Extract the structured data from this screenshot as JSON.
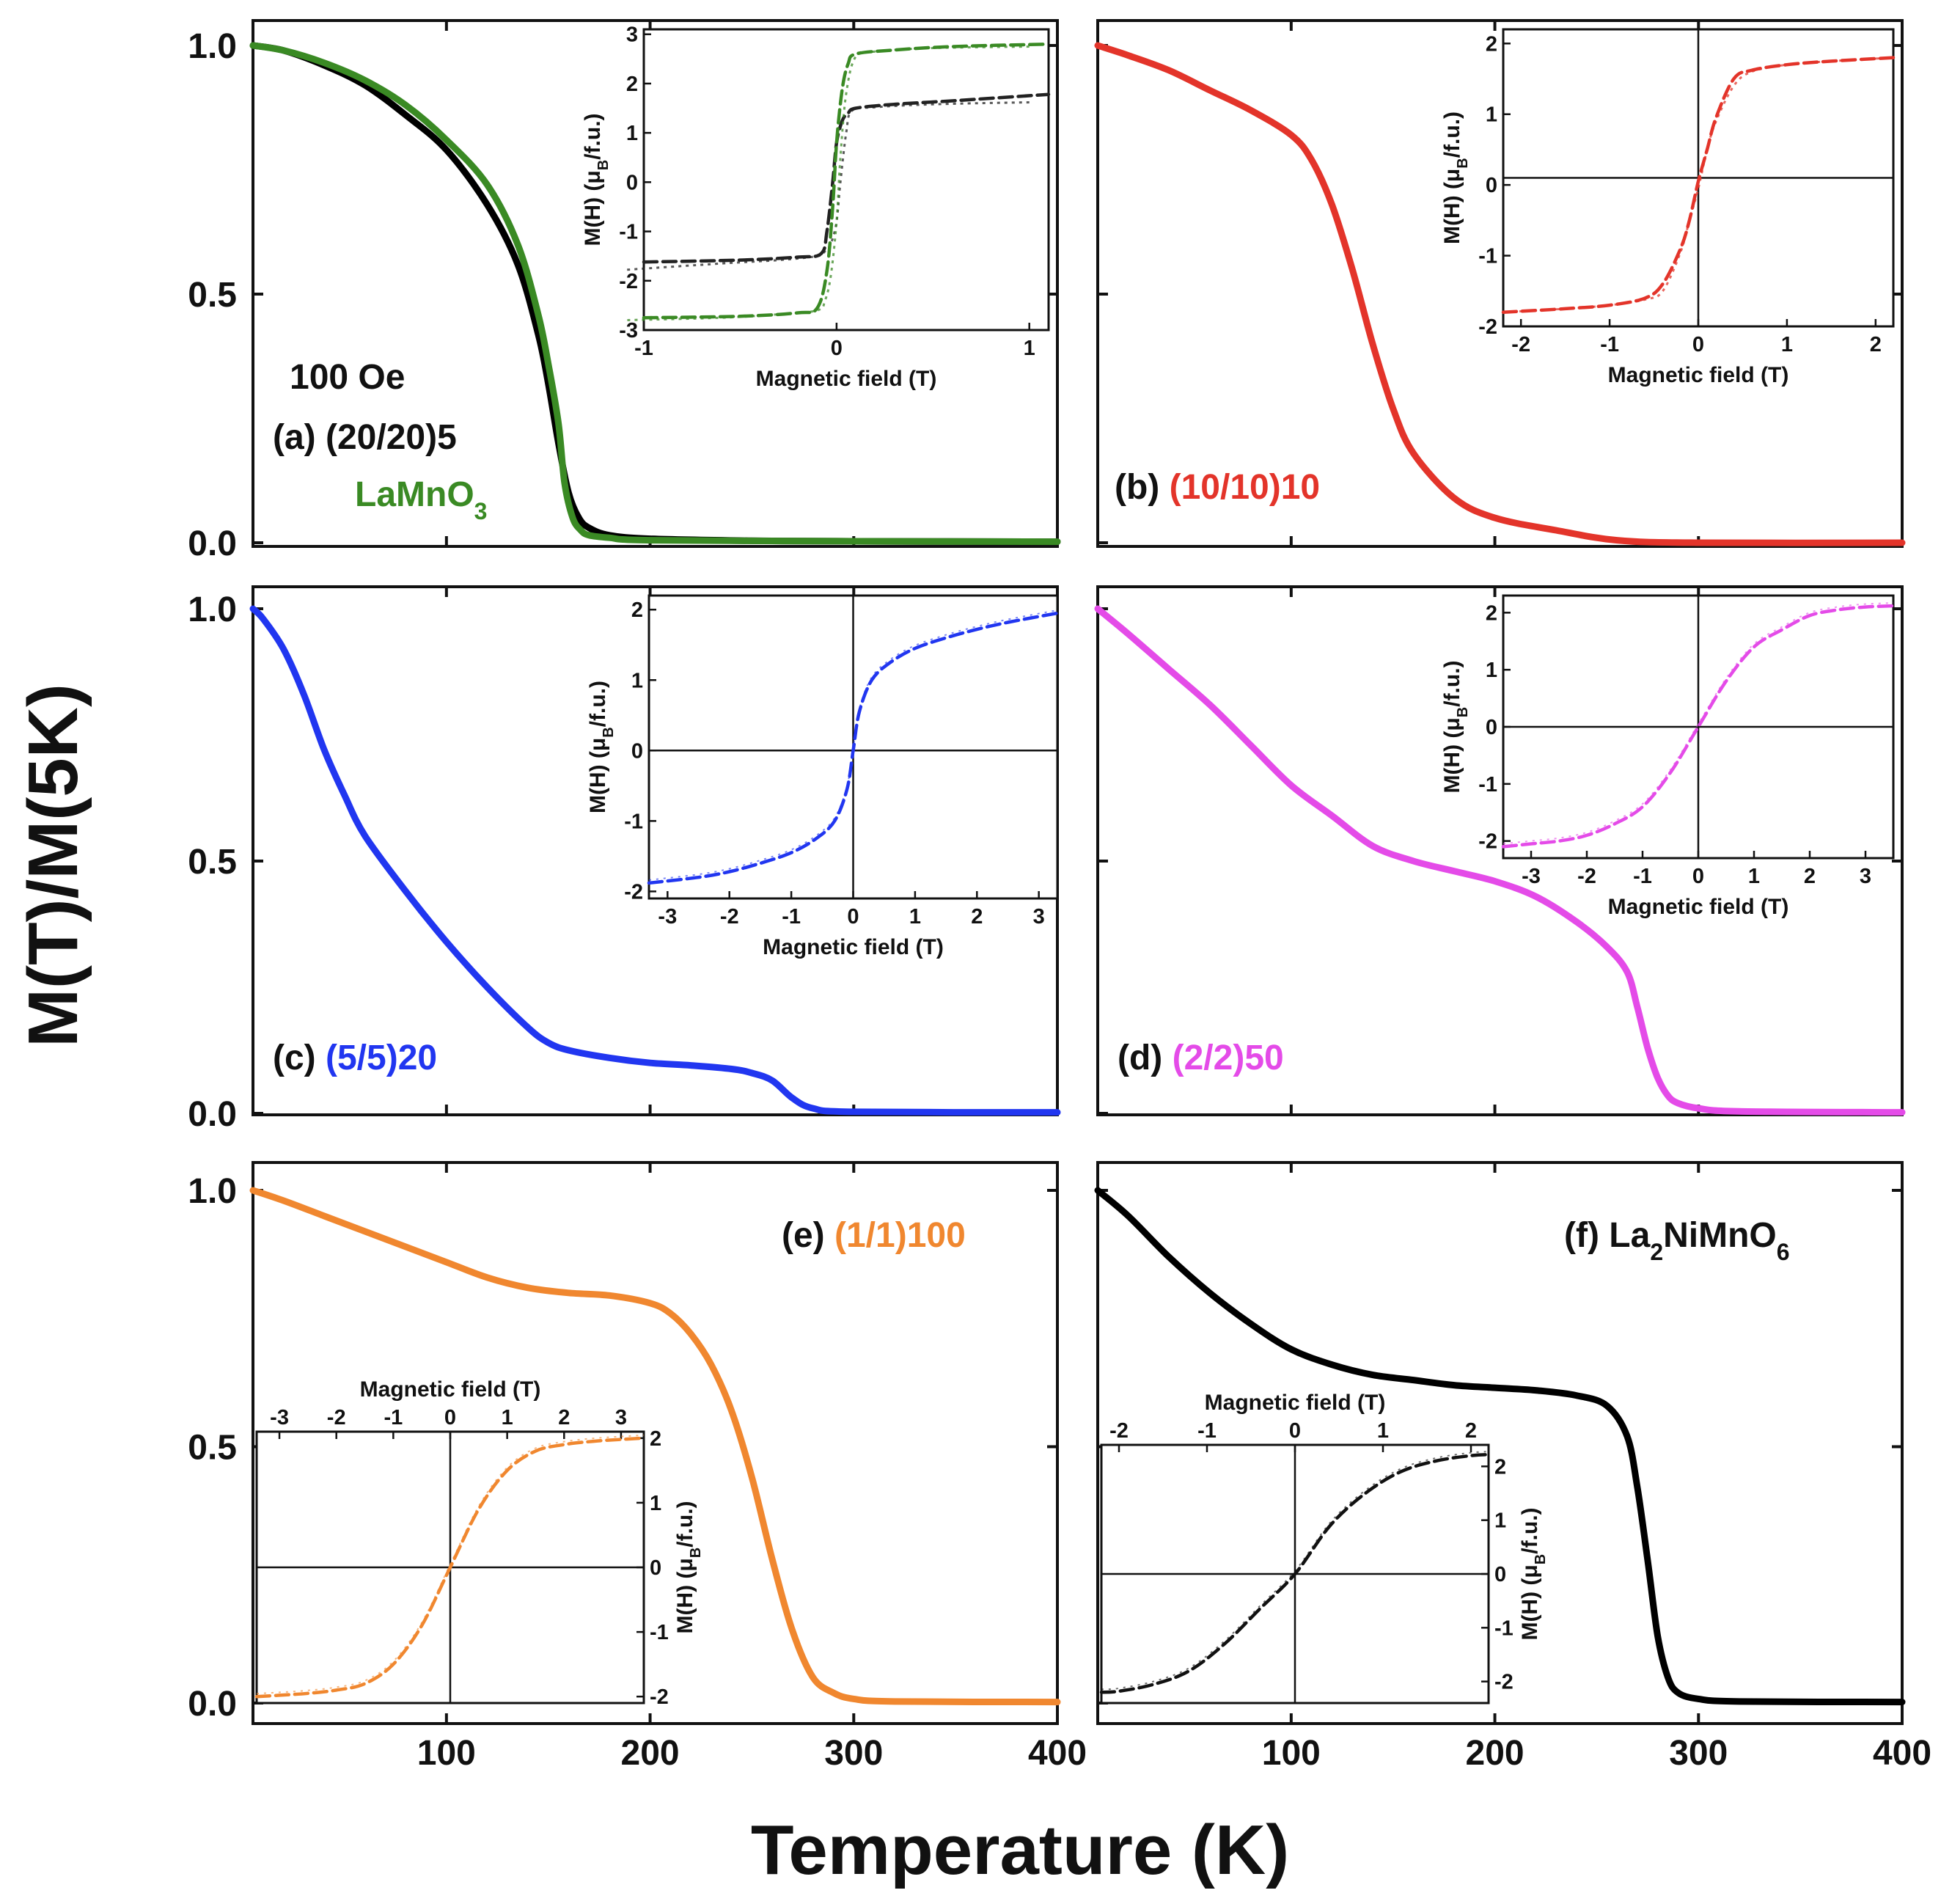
{
  "figure": {
    "ylabel": "M(T)/M(5K)",
    "xlabel": "Temperature (K)",
    "y_ticks": [
      "0.0",
      "0.5",
      "1.0"
    ],
    "x_ticks": [
      "100",
      "200",
      "300",
      "400"
    ]
  },
  "chart_data": [
    {
      "id": "a",
      "type": "line",
      "xlabel": "Temperature (K)",
      "ylabel": "M(T)/M(5K)",
      "xlim": [
        5,
        400
      ],
      "ylim": [
        0,
        1
      ],
      "label": {
        "prefix": "(a) (20/20)5",
        "note": "100 Oe",
        "extra_main": "LaMnO",
        "extra_sub": "3"
      },
      "series": [
        {
          "name": "(20/20)5",
          "color": "#000000",
          "x": [
            5,
            20,
            40,
            60,
            80,
            100,
            120,
            135,
            145,
            150,
            155,
            160,
            165,
            170,
            180,
            200,
            250,
            300,
            400
          ],
          "y": [
            1.0,
            0.99,
            0.96,
            0.92,
            0.86,
            0.79,
            0.68,
            0.56,
            0.42,
            0.32,
            0.2,
            0.1,
            0.05,
            0.03,
            0.015,
            0.008,
            0.004,
            0.003,
            0.002
          ]
        },
        {
          "name": "LaMnO3",
          "color": "#3a8a24",
          "x": [
            5,
            20,
            40,
            60,
            80,
            100,
            120,
            135,
            145,
            150,
            155,
            158,
            162,
            166,
            170,
            180,
            200,
            300,
            400
          ],
          "y": [
            1.0,
            0.99,
            0.965,
            0.93,
            0.88,
            0.81,
            0.72,
            0.6,
            0.46,
            0.36,
            0.24,
            0.12,
            0.05,
            0.025,
            0.015,
            0.01,
            0.005,
            0.003,
            0.002
          ]
        }
      ],
      "inset": {
        "xlabel": "Magnetic field (T)",
        "ylabel_prefix": "M(H) (μ",
        "ylabel_sub": "B",
        "ylabel_suffix": "/f.u.)",
        "xlim": [
          -1,
          1.1
        ],
        "ylim": [
          -3,
          3.1
        ],
        "x_ticks": [
          "-1",
          "0",
          "1"
        ],
        "y_ticks": [
          "-3",
          "-2",
          "-1",
          "0",
          "1",
          "2",
          "3"
        ],
        "crosshair": false,
        "series": [
          {
            "name": "(20/20)5",
            "color": "#222222",
            "type": "loop",
            "x": [
              -1,
              -0.5,
              -0.2,
              -0.08,
              -0.05,
              -0.02,
              0.0,
              0.03,
              0.06,
              0.1,
              0.3,
              0.6,
              1.1
            ],
            "y": [
              -1.62,
              -1.58,
              -1.52,
              -1.45,
              -1.0,
              0.0,
              0.8,
              1.25,
              1.4,
              1.5,
              1.58,
              1.65,
              1.78
            ]
          },
          {
            "name": "LaMnO3",
            "color": "#3a8a24",
            "type": "loop",
            "x": [
              -1,
              -0.5,
              -0.2,
              -0.1,
              -0.05,
              -0.02,
              0.0,
              0.03,
              0.06,
              0.1,
              0.3,
              0.6,
              1.1
            ],
            "y": [
              -2.75,
              -2.72,
              -2.65,
              -2.55,
              -1.8,
              -0.5,
              0.8,
              1.9,
              2.4,
              2.6,
              2.68,
              2.75,
              2.8
            ]
          }
        ]
      }
    },
    {
      "id": "b",
      "type": "line",
      "xlim": [
        5,
        400
      ],
      "ylim": [
        0,
        1
      ],
      "label": {
        "prefix": "(b) ",
        "sample": "(10/10)10",
        "sample_color": "#e3342a"
      },
      "series": [
        {
          "name": "(10/10)10",
          "color": "#e3342a",
          "x": [
            5,
            20,
            40,
            60,
            80,
            100,
            110,
            120,
            130,
            140,
            150,
            160,
            180,
            200,
            230,
            260,
            300,
            400
          ],
          "y": [
            1.0,
            0.98,
            0.95,
            0.91,
            0.87,
            0.82,
            0.77,
            0.68,
            0.55,
            0.4,
            0.27,
            0.18,
            0.09,
            0.05,
            0.025,
            0.005,
            0.0,
            0.0
          ]
        }
      ],
      "inset": {
        "xlabel": "Magnetic field (T)",
        "ylabel_prefix": "M(H) (μ",
        "ylabel_sub": "B",
        "ylabel_suffix": "/f.u.)",
        "xlim": [
          -2.2,
          2.2
        ],
        "ylim": [
          -2,
          2.2
        ],
        "x_ticks": [
          "-2",
          "-1",
          "0",
          "1",
          "2"
        ],
        "y_ticks": [
          "-2",
          "-1",
          "0",
          "1",
          "2"
        ],
        "crosshair": true,
        "crosshair_y": 0.1,
        "series": [
          {
            "name": "(10/10)10",
            "color": "#e3342a",
            "type": "loop",
            "x": [
              -2.2,
              -1.5,
              -1,
              -0.6,
              -0.4,
              -0.2,
              -0.1,
              0,
              0.1,
              0.2,
              0.4,
              0.6,
              1,
              1.5,
              2.2
            ],
            "y": [
              -1.8,
              -1.75,
              -1.7,
              -1.6,
              -1.4,
              -0.9,
              -0.5,
              0.05,
              0.5,
              0.95,
              1.5,
              1.62,
              1.7,
              1.75,
              1.8
            ]
          }
        ]
      }
    },
    {
      "id": "c",
      "type": "line",
      "xlim": [
        5,
        400
      ],
      "ylim": [
        0,
        1
      ],
      "label": {
        "prefix": "(c) ",
        "sample": "(5/5)20",
        "sample_color": "#2136f0"
      },
      "series": [
        {
          "name": "(5/5)20",
          "color": "#2136f0",
          "x": [
            5,
            10,
            20,
            30,
            40,
            50,
            60,
            80,
            100,
            120,
            140,
            150,
            160,
            180,
            200,
            220,
            240,
            250,
            260,
            270,
            280,
            300,
            400
          ],
          "y": [
            1.0,
            0.98,
            0.92,
            0.83,
            0.72,
            0.63,
            0.55,
            0.44,
            0.34,
            0.25,
            0.17,
            0.14,
            0.125,
            0.11,
            0.1,
            0.095,
            0.088,
            0.08,
            0.065,
            0.03,
            0.01,
            0.003,
            0.002
          ]
        }
      ],
      "inset": {
        "xlabel": "Magnetic field (T)",
        "ylabel_prefix": "M(H) (μ",
        "ylabel_sub": "B",
        "ylabel_suffix": "/f.u.)",
        "xlim": [
          -3.3,
          3.3
        ],
        "ylim": [
          -2.1,
          2.2
        ],
        "x_ticks": [
          "-3",
          "-2",
          "-1",
          "0",
          "1",
          "2",
          "3"
        ],
        "y_ticks": [
          "-2",
          "-1",
          "0",
          "1",
          "2"
        ],
        "crosshair": true,
        "crosshair_y": 0,
        "series": [
          {
            "name": "(5/5)20",
            "color": "#2136f0",
            "type": "curve",
            "x": [
              -3.3,
              -2.5,
              -2,
              -1.5,
              -1,
              -0.6,
              -0.3,
              -0.1,
              0,
              0.1,
              0.3,
              0.6,
              1,
              1.5,
              2,
              2.5,
              3.3
            ],
            "y": [
              -1.88,
              -1.8,
              -1.72,
              -1.6,
              -1.45,
              -1.25,
              -1.0,
              -0.55,
              0.0,
              0.55,
              1.0,
              1.25,
              1.45,
              1.6,
              1.72,
              1.82,
              1.95
            ]
          }
        ]
      }
    },
    {
      "id": "d",
      "type": "line",
      "xlim": [
        5,
        400
      ],
      "ylim": [
        0,
        1
      ],
      "label": {
        "prefix": "(d) ",
        "sample": "(2/2)50",
        "sample_color": "#e44be8"
      },
      "series": [
        {
          "name": "(2/2)50",
          "color": "#e44be8",
          "x": [
            5,
            20,
            40,
            60,
            80,
            100,
            120,
            140,
            160,
            180,
            200,
            220,
            240,
            255,
            265,
            270,
            275,
            280,
            285,
            290,
            300,
            320,
            400
          ],
          "y": [
            1.0,
            0.95,
            0.88,
            0.81,
            0.73,
            0.65,
            0.59,
            0.53,
            0.5,
            0.48,
            0.46,
            0.43,
            0.38,
            0.33,
            0.28,
            0.21,
            0.13,
            0.07,
            0.035,
            0.02,
            0.01,
            0.004,
            0.002
          ]
        }
      ],
      "inset": {
        "xlabel": "Magnetic field (T)",
        "ylabel_prefix": "M(H) (μ",
        "ylabel_sub": "B",
        "ylabel_suffix": "/f.u.)",
        "xlim": [
          -3.5,
          3.5
        ],
        "ylim": [
          -2.3,
          2.3
        ],
        "x_ticks": [
          "-3",
          "-2",
          "-1",
          "0",
          "1",
          "2",
          "3"
        ],
        "y_ticks": [
          "-2",
          "-1",
          "0",
          "1",
          "2"
        ],
        "crosshair": true,
        "crosshair_y": 0,
        "series": [
          {
            "name": "(2/2)50",
            "color": "#e44be8",
            "type": "curve",
            "x": [
              -3.5,
              -3,
              -2.5,
              -2,
              -1.5,
              -1,
              -0.5,
              0,
              0.5,
              1,
              1.5,
              2,
              2.5,
              3,
              3.5
            ],
            "y": [
              -2.1,
              -2.05,
              -2.0,
              -1.9,
              -1.7,
              -1.4,
              -0.8,
              0.0,
              0.8,
              1.4,
              1.7,
              1.95,
              2.05,
              2.1,
              2.12
            ]
          }
        ]
      }
    },
    {
      "id": "e",
      "type": "line",
      "xlim": [
        5,
        400
      ],
      "ylim": [
        0,
        1
      ],
      "label": {
        "prefix": "(e) ",
        "sample": "(1/1)100",
        "sample_color": "#f0872f"
      },
      "series": [
        {
          "name": "(1/1)100",
          "color": "#f0872f",
          "x": [
            5,
            20,
            40,
            60,
            80,
            100,
            120,
            140,
            160,
            180,
            200,
            210,
            220,
            230,
            240,
            250,
            260,
            270,
            280,
            290,
            300,
            320,
            400
          ],
          "y": [
            1.0,
            0.98,
            0.95,
            0.92,
            0.89,
            0.86,
            0.83,
            0.81,
            0.8,
            0.795,
            0.78,
            0.76,
            0.72,
            0.66,
            0.57,
            0.44,
            0.28,
            0.14,
            0.05,
            0.02,
            0.008,
            0.003,
            0.002
          ]
        }
      ],
      "inset": {
        "xlabel": "Magnetic field (T)",
        "ylabel_prefix": "M(H) (μ",
        "ylabel_sub": "B",
        "ylabel_suffix": "/f.u.)",
        "xlim": [
          -3.4,
          3.4
        ],
        "ylim": [
          -2.1,
          2.1
        ],
        "x_ticks": [
          "-3",
          "-2",
          "-1",
          "0",
          "1",
          "2",
          "3"
        ],
        "y_ticks": [
          "-2",
          "-1",
          "0",
          "1",
          "2"
        ],
        "crosshair": true,
        "crosshair_y": 0,
        "series": [
          {
            "name": "(1/1)100",
            "color": "#f0872f",
            "type": "curve",
            "x": [
              -3.4,
              -3,
              -2.5,
              -2,
              -1.5,
              -1,
              -0.5,
              0,
              0.5,
              1,
              1.5,
              2,
              2.5,
              3,
              3.4
            ],
            "y": [
              -2.0,
              -1.98,
              -1.95,
              -1.9,
              -1.8,
              -1.5,
              -0.9,
              0.0,
              0.9,
              1.5,
              1.8,
              1.9,
              1.95,
              1.98,
              2.0
            ]
          }
        ]
      }
    },
    {
      "id": "f",
      "type": "line",
      "xlim": [
        5,
        400
      ],
      "ylim": [
        0,
        1
      ],
      "label": {
        "prefix": "(f) La",
        "sub1": "2",
        "mid": "NiMnO",
        "sub2": "6"
      },
      "series": [
        {
          "name": "La2NiMnO6",
          "color": "#000000",
          "x": [
            5,
            20,
            40,
            60,
            80,
            100,
            120,
            140,
            160,
            180,
            200,
            220,
            240,
            255,
            265,
            270,
            275,
            280,
            285,
            290,
            300,
            320,
            400
          ],
          "y": [
            1.0,
            0.95,
            0.87,
            0.8,
            0.74,
            0.69,
            0.66,
            0.64,
            0.63,
            0.62,
            0.615,
            0.61,
            0.6,
            0.58,
            0.52,
            0.42,
            0.28,
            0.13,
            0.05,
            0.02,
            0.008,
            0.003,
            0.002
          ]
        }
      ],
      "inset": {
        "xlabel": "Magnetic field (T)",
        "ylabel_prefix": "M(H) (μ",
        "ylabel_sub": "B",
        "ylabel_suffix": "/f.u.)",
        "xlim": [
          -2.2,
          2.2
        ],
        "ylim": [
          -2.4,
          2.4
        ],
        "x_ticks": [
          "-2",
          "-1",
          "0",
          "1",
          "2"
        ],
        "y_ticks": [
          "-2",
          "-1",
          "0",
          "1",
          "2"
        ],
        "crosshair": true,
        "crosshair_y": 0,
        "series": [
          {
            "name": "La2NiMnO6",
            "color": "#111111",
            "type": "curve",
            "x": [
              -2.2,
              -2,
              -1.6,
              -1.2,
              -0.8,
              -0.4,
              0,
              0.4,
              0.8,
              1.2,
              1.6,
              2,
              2.2
            ],
            "y": [
              -2.2,
              -2.18,
              -2.05,
              -1.8,
              -1.3,
              -0.65,
              0.0,
              0.9,
              1.5,
              1.9,
              2.1,
              2.2,
              2.22
            ]
          }
        ]
      }
    }
  ]
}
